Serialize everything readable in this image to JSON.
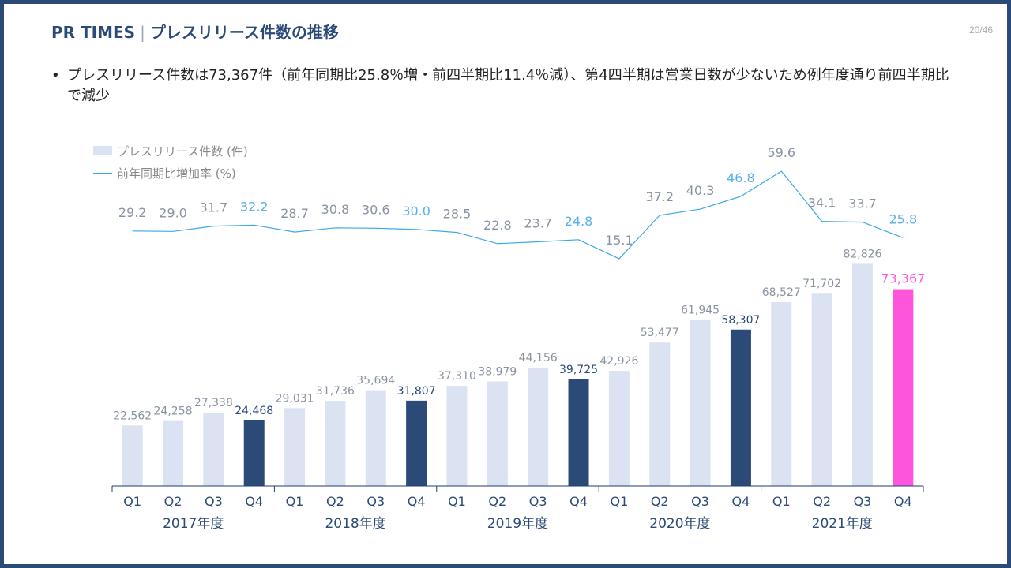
{
  "header": {
    "brand": "PR TIMES",
    "separator": "|",
    "title": "プレスリリース件数の推移",
    "page": "20/46"
  },
  "bullet": {
    "mark": "•",
    "text": "プレスリリース件数は73,367件（前年同期比25.8％増・前四半期比11.4％減）、第4四半期は営業日数が少ないため例年度通り前四半期比で減少"
  },
  "legend": {
    "bars": "プレスリリース件数 (件)",
    "line": "前年同期比増加率 (%)"
  },
  "chart_data": {
    "type": "bar",
    "categories": [
      "Q1",
      "Q2",
      "Q3",
      "Q4",
      "Q1",
      "Q2",
      "Q3",
      "Q4",
      "Q1",
      "Q2",
      "Q3",
      "Q4",
      "Q1",
      "Q2",
      "Q3",
      "Q4",
      "Q1",
      "Q2",
      "Q3",
      "Q4"
    ],
    "groups": [
      "2017年度",
      "2018年度",
      "2019年度",
      "2020年度",
      "2021年度"
    ],
    "series": [
      {
        "name": "プレスリリース件数 (件)",
        "type": "bar",
        "values": [
          22562,
          24258,
          27338,
          24468,
          29031,
          31736,
          35694,
          31807,
          37310,
          38979,
          44156,
          39725,
          42926,
          53477,
          61945,
          58307,
          68527,
          71702,
          82826,
          73367
        ],
        "labels": [
          "22,562",
          "24,258",
          "27,338",
          "24,468",
          "29,031",
          "31,736",
          "35,694",
          "31,807",
          "37,310",
          "38,979",
          "44,156",
          "39,725",
          "42,926",
          "53,477",
          "61,945",
          "58,307",
          "68,527",
          "71,702",
          "82,826",
          "73,367"
        ]
      },
      {
        "name": "前年同期比増加率 (%)",
        "type": "line",
        "values": [
          29.2,
          29.0,
          31.7,
          32.2,
          28.7,
          30.8,
          30.6,
          30.0,
          28.5,
          22.8,
          23.7,
          24.8,
          15.1,
          37.2,
          40.3,
          46.8,
          59.6,
          34.1,
          33.7,
          25.8
        ],
        "labels": [
          "29.2",
          "29.0",
          "31.7",
          "32.2",
          "28.7",
          "30.8",
          "30.6",
          "30.0",
          "28.5",
          "22.8",
          "23.7",
          "24.8",
          "15.1",
          "37.2",
          "40.3",
          "46.8",
          "59.6",
          "34.1",
          "33.7",
          "25.8"
        ]
      }
    ],
    "ylim": [
      0,
      85000
    ],
    "colors": {
      "bar": "#dbe3f3",
      "bar_q4": "#2b4a78",
      "bar_latest": "#ff55dd",
      "line": "#3aa9e8",
      "label": "#8a93a3",
      "label_q4_bar": "#2b4a78",
      "label_q4_line": "#5ab0ea",
      "label_latest": "#ff55dd",
      "axis": "#1f3e6e",
      "axis_text": "#2b4a78"
    }
  }
}
